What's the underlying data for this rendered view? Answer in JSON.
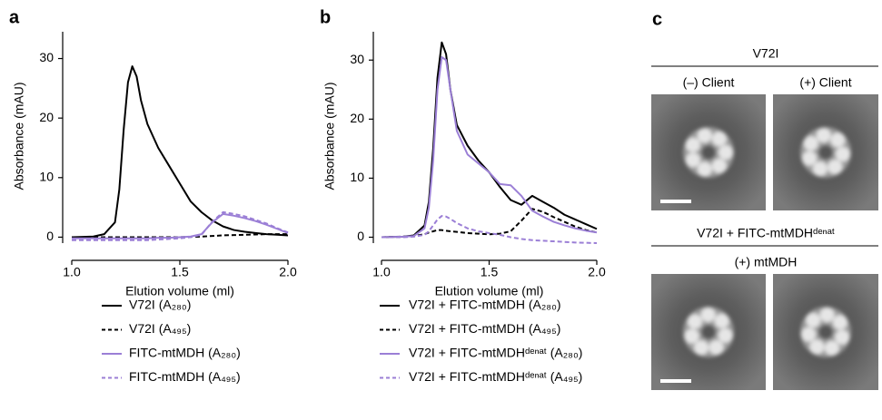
{
  "panel_labels": [
    "a",
    "b",
    "c"
  ],
  "chart_data": [
    {
      "type": "line",
      "x_label": "Elution volume (ml)",
      "y_label": "Absorbance (mAU)",
      "x": [
        1.0,
        1.1,
        1.15,
        1.2,
        1.22,
        1.24,
        1.26,
        1.28,
        1.3,
        1.32,
        1.35,
        1.4,
        1.45,
        1.5,
        1.55,
        1.6,
        1.65,
        1.7,
        1.75,
        1.8,
        1.85,
        1.9,
        1.95,
        2.0
      ],
      "xlim": [
        1.0,
        2.0
      ],
      "xticks": [
        {
          "value": 1.0,
          "label": "1.0"
        },
        1.5,
        {
          "value": 2.0,
          "label": "2.0"
        }
      ],
      "ylim": [
        -1,
        34.5
      ],
      "yticks": [
        0,
        10,
        20,
        30
      ],
      "series": [
        {
          "name": "V72I (A₂₈₀)",
          "color": "#000000",
          "style": "solid",
          "values": [
            0,
            0.1,
            0.5,
            2.5,
            8,
            18,
            26,
            28.7,
            27,
            23,
            19,
            15,
            12,
            9,
            6,
            4.2,
            2.8,
            1.8,
            1.2,
            0.9,
            0.7,
            0.5,
            0.4,
            0.3
          ]
        },
        {
          "name": "V72I (A₄₉₅)",
          "color": "#000000",
          "style": "dashed",
          "values": [
            0,
            0,
            0,
            0,
            0,
            0,
            0,
            0,
            0,
            0,
            0,
            0,
            0,
            0,
            0.05,
            0.1,
            0.2,
            0.3,
            0.35,
            0.4,
            0.45,
            0.5,
            0.5,
            0.5
          ]
        },
        {
          "name": "FITC-mtMDH (A₂₈₀)",
          "color": "#9b7fd6",
          "style": "solid",
          "values": [
            -0.2,
            -0.2,
            -0.2,
            -0.2,
            -0.2,
            -0.2,
            -0.2,
            -0.2,
            -0.2,
            -0.2,
            -0.2,
            -0.1,
            -0.1,
            0,
            0.1,
            0.5,
            2.5,
            3.9,
            3.6,
            3.2,
            2.7,
            2.1,
            1.4,
            0.7
          ]
        },
        {
          "name": "FITC-mtMDH (A₄₉₅)",
          "color": "#9b7fd6",
          "style": "dashed",
          "values": [
            -0.5,
            -0.5,
            -0.5,
            -0.5,
            -0.5,
            -0.5,
            -0.5,
            -0.5,
            -0.5,
            -0.5,
            -0.5,
            -0.4,
            -0.3,
            -0.2,
            0,
            0.4,
            2.6,
            4.2,
            3.9,
            3.5,
            2.9,
            2.3,
            1.5,
            0.8
          ]
        }
      ]
    },
    {
      "type": "line",
      "x_label": "Elution volume (ml)",
      "y_label": "Absorbance (mAU)",
      "x": [
        1.0,
        1.1,
        1.15,
        1.2,
        1.22,
        1.24,
        1.26,
        1.28,
        1.3,
        1.32,
        1.35,
        1.4,
        1.45,
        1.5,
        1.55,
        1.6,
        1.65,
        1.7,
        1.75,
        1.8,
        1.85,
        1.9,
        1.95,
        2.0
      ],
      "xlim": [
        1.0,
        2.0
      ],
      "xticks": [
        {
          "value": 1.0,
          "label": "1.0"
        },
        1.5,
        {
          "value": 2.0,
          "label": "2.0"
        }
      ],
      "ylim": [
        -1,
        34.8
      ],
      "yticks": [
        0,
        10,
        20,
        30
      ],
      "series": [
        {
          "name": "V72I + FITC-mtMDH (A₂₈₀)",
          "color": "#000000",
          "style": "solid",
          "values": [
            0,
            0.1,
            0.3,
            2,
            6,
            15,
            27,
            33,
            31,
            25,
            19,
            15.5,
            13,
            11,
            8.5,
            6.3,
            5.5,
            7,
            6,
            5,
            3.8,
            3,
            2.2,
            1.4
          ]
        },
        {
          "name": "V72I + FITC-mtMDH (A₄₉₅)",
          "color": "#000000",
          "style": "dashed",
          "values": [
            0,
            0.1,
            0.2,
            0.5,
            0.8,
            1,
            1.2,
            1.2,
            1.1,
            1,
            0.9,
            0.7,
            0.6,
            0.5,
            0.6,
            1,
            2.8,
            4.8,
            4.3,
            3.4,
            2.6,
            1.8,
            1.2,
            0.8
          ]
        },
        {
          "name": "V72I + FITC-mtMDHᵈᵉⁿᵃᵗ (A₂₈₀)",
          "color": "#9b7fd6",
          "style": "solid",
          "values": [
            0,
            0.1,
            0.2,
            1.5,
            5,
            13,
            25,
            30.5,
            30,
            25,
            18,
            14,
            12.5,
            11,
            9,
            8.8,
            7,
            4.5,
            3.5,
            2.6,
            2,
            1.5,
            1.1,
            0.8
          ]
        },
        {
          "name": "V72I + FITC-mtMDHᵈᵉⁿᵃᵗ (A₄₉₅)",
          "color": "#9b7fd6",
          "style": "dashed",
          "values": [
            0,
            0,
            0.1,
            0.4,
            1,
            2,
            3,
            3.6,
            3.5,
            3.1,
            2.4,
            1.5,
            1,
            0.7,
            0.4,
            0,
            -0.3,
            -0.5,
            -0.6,
            -0.7,
            -0.8,
            -0.9,
            -0.95,
            -1
          ]
        }
      ]
    }
  ],
  "panel_c": {
    "top_title": "V72I",
    "top_left": "(–) Client",
    "top_right": "(+) Client",
    "bottom_title": "V72I + FITC-mtMDHᵈᵉⁿᵃᵗ",
    "bottom_sub": "(+) mtMDH"
  }
}
